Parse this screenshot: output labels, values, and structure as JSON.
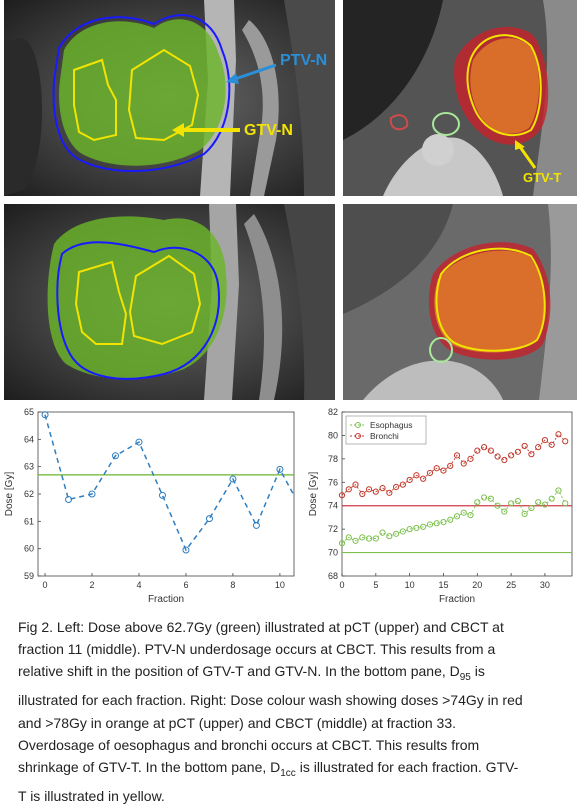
{
  "figure": {
    "upper_left_labels": {
      "ptv": "PTV-N",
      "gtv": "GTV-N"
    },
    "upper_right_label": "GTV-T",
    "colors": {
      "ptv_label": "#2a8fd8",
      "gtv_label": "#f2e400",
      "dose_green": "#6ab42a",
      "ptv_contour": "#1a1aff",
      "dose_red": "#c8202a",
      "dose_orange": "#e07a2a"
    }
  },
  "chart_data": [
    {
      "type": "line",
      "xlabel": "Fraction",
      "ylabel": "Dose [Gy]",
      "xlim": [
        -0.3,
        10.6
      ],
      "ylim": [
        59,
        65
      ],
      "xticks": [
        0,
        2,
        4,
        6,
        8,
        10
      ],
      "yticks": [
        59,
        60,
        61,
        62,
        63,
        64,
        65
      ],
      "reference_line": 62.7,
      "series": [
        {
          "x": [
            0,
            1,
            2,
            3,
            4,
            5,
            6,
            7,
            8,
            9,
            10
          ],
          "values": [
            64.9,
            61.8,
            62.0,
            63.4,
            63.9,
            61.95,
            59.95,
            61.1,
            62.55,
            60.85,
            62.9
          ],
          "color": "#2f7ec1"
        }
      ]
    },
    {
      "type": "line",
      "xlabel": "Fraction",
      "ylabel": "Dose [Gy]",
      "xlim": [
        0,
        34
      ],
      "ylim": [
        68,
        82
      ],
      "xticks": [
        0,
        5,
        10,
        15,
        20,
        25,
        30
      ],
      "yticks": [
        68,
        70,
        72,
        74,
        76,
        78,
        80,
        82
      ],
      "reference_lines": [
        {
          "y": 74,
          "color": "#d33a4a"
        },
        {
          "y": 70,
          "color": "#7dc050"
        }
      ],
      "series": [
        {
          "name": "Esophagus",
          "color": "#7dc050",
          "x": [
            0,
            1,
            2,
            3,
            4,
            5,
            6,
            7,
            8,
            9,
            10,
            11,
            12,
            13,
            14,
            15,
            16,
            17,
            18,
            19,
            20,
            21,
            22,
            23,
            24,
            25,
            26,
            27,
            28,
            29,
            30,
            31,
            32,
            33
          ],
          "values": [
            70.8,
            71.3,
            71.0,
            71.3,
            71.2,
            71.2,
            71.7,
            71.4,
            71.6,
            71.8,
            72.0,
            72.1,
            72.2,
            72.4,
            72.5,
            72.6,
            72.8,
            73.1,
            73.4,
            73.2,
            74.3,
            74.7,
            74.6,
            74.0,
            73.5,
            74.2,
            74.4,
            73.3,
            73.8,
            74.3,
            74.1,
            74.6,
            75.3,
            74.2
          ]
        },
        {
          "name": "Bronchi",
          "color": "#c0392b",
          "x": [
            0,
            1,
            2,
            3,
            4,
            5,
            6,
            7,
            8,
            9,
            10,
            11,
            12,
            13,
            14,
            15,
            16,
            17,
            18,
            19,
            20,
            21,
            22,
            23,
            24,
            25,
            26,
            27,
            28,
            29,
            30,
            31,
            32,
            33
          ],
          "values": [
            74.9,
            75.4,
            75.8,
            75.0,
            75.4,
            75.2,
            75.5,
            75.1,
            75.6,
            75.8,
            76.2,
            76.6,
            76.3,
            76.8,
            77.2,
            77.0,
            77.4,
            78.3,
            77.6,
            78.0,
            78.7,
            79.0,
            78.7,
            78.2,
            77.9,
            78.3,
            78.6,
            79.1,
            78.4,
            79.0,
            79.6,
            79.2,
            80.1,
            79.5
          ]
        }
      ],
      "legend": "top-left"
    }
  ],
  "caption": {
    "line1": "Fig 2. Left: Dose above 62.7Gy (green) illustrated at pCT (upper) and CBCT at",
    "line2": "fraction 11 (middle). PTV-N underdosage occurs at CBCT. This results from a",
    "line3_a": "relative shift in the position of GTV-T and GTV-N. In the bottom pane, D",
    "line3_sub": "95",
    "line3_b": " is",
    "line4": "illustrated for each fraction. Right: Dose colour wash showing doses >74Gy in red",
    "line5": "and >78Gy in orange at pCT (upper) and CBCT (middle) at fraction 33.",
    "line6": "Overdosage of oesophagus and bronchi occurs at CBCT. This results from",
    "line7_a": "shrinkage of GTV-T. In the bottom pane, D",
    "line7_sub": "1cc",
    "line7_b": " is illustrated for each fraction. GTV-",
    "line8": "T is illustrated in yellow."
  }
}
